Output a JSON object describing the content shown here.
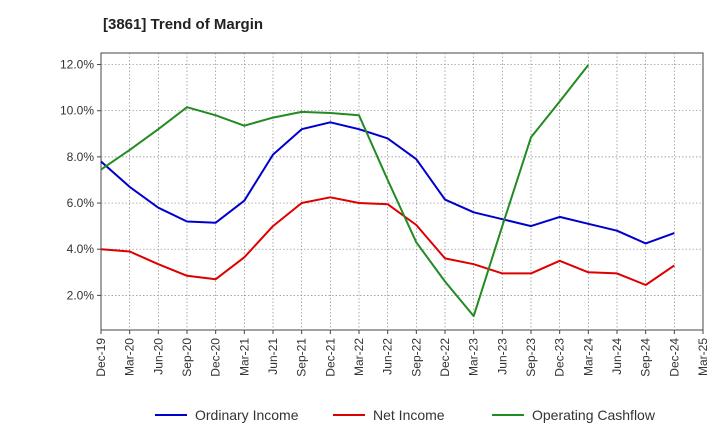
{
  "chart_data": {
    "type": "line",
    "title": "[3861]  Trend of Margin",
    "x": [
      "Dec-19",
      "Mar-20",
      "Jun-20",
      "Sep-20",
      "Dec-20",
      "Mar-21",
      "Jun-21",
      "Sep-21",
      "Dec-21",
      "Mar-22",
      "Jun-22",
      "Sep-22",
      "Dec-22",
      "Mar-23",
      "Jun-23",
      "Sep-23",
      "Dec-23",
      "Mar-24",
      "Jun-24",
      "Sep-24",
      "Dec-24",
      "Mar-25"
    ],
    "ylim": [
      0.5,
      12.5
    ],
    "yticks": [
      "2.0%",
      "4.0%",
      "6.0%",
      "8.0%",
      "10.0%",
      "12.0%"
    ],
    "ytick_values": [
      2,
      4,
      6,
      8,
      10,
      12
    ],
    "grid": true,
    "legend_position": "bottom",
    "series": [
      {
        "name": "Ordinary Income",
        "color": "#0000cc",
        "values": [
          7.8,
          6.7,
          5.8,
          5.2,
          5.15,
          6.1,
          8.1,
          9.2,
          9.5,
          9.2,
          8.8,
          7.9,
          6.15,
          5.6,
          5.3,
          5.0,
          5.4,
          5.1,
          4.8,
          4.25,
          4.7,
          null
        ]
      },
      {
        "name": "Net Income",
        "color": "#dd0000",
        "values": [
          4.0,
          3.9,
          3.35,
          2.85,
          2.7,
          3.65,
          5.0,
          6.0,
          6.25,
          6.0,
          5.95,
          5.05,
          3.6,
          3.35,
          2.95,
          2.95,
          3.5,
          3.0,
          2.95,
          2.45,
          3.3,
          null
        ]
      },
      {
        "name": "Operating Cashflow",
        "color": "#228b22",
        "values": [
          7.45,
          8.3,
          9.2,
          10.15,
          9.8,
          9.35,
          9.7,
          9.95,
          9.9,
          9.8,
          7.0,
          4.3,
          2.6,
          1.1,
          5.0,
          8.85,
          10.4,
          11.98,
          null,
          null,
          null,
          null
        ]
      }
    ]
  }
}
